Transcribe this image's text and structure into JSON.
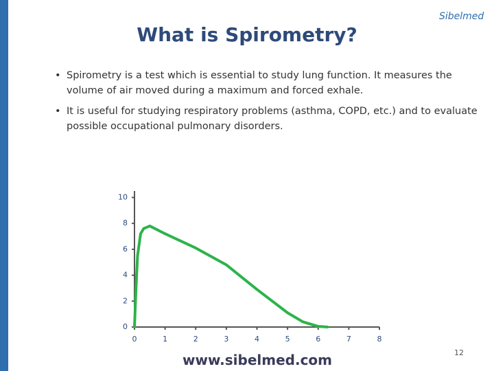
{
  "header": {
    "title": "What is Spirometry?",
    "logo": "Sibelmed"
  },
  "bullets": [
    [
      "Spirometry is a test which is essential to study lung function. It measures the",
      "volume of air moved during a maximum and forced exhale."
    ],
    [
      "It is useful for studying respiratory problems (asthma, COPD, etc.) and to evaluate",
      "possible occupational pulmonary disorders."
    ]
  ],
  "chart_data": {
    "type": "line",
    "x": [
      0,
      0.05,
      0.1,
      0.2,
      0.3,
      0.5,
      1,
      2,
      3,
      4,
      5,
      5.5,
      6,
      6.3
    ],
    "series": [
      {
        "color": "#2db34a",
        "values": [
          0,
          3,
          5.5,
          7.2,
          7.6,
          7.8,
          7.2,
          6.1,
          4.8,
          2.9,
          1.1,
          0.4,
          0.05,
          0
        ]
      }
    ],
    "xlim": [
      0,
      8
    ],
    "xticks": [
      0,
      1,
      2,
      3,
      4,
      5,
      6,
      7,
      8
    ],
    "ylim": [
      0,
      10.5
    ],
    "yticks": [
      0,
      2,
      4,
      6,
      8,
      10
    ]
  },
  "footer": {
    "url": "www.sibelmed.com",
    "page": "12"
  }
}
